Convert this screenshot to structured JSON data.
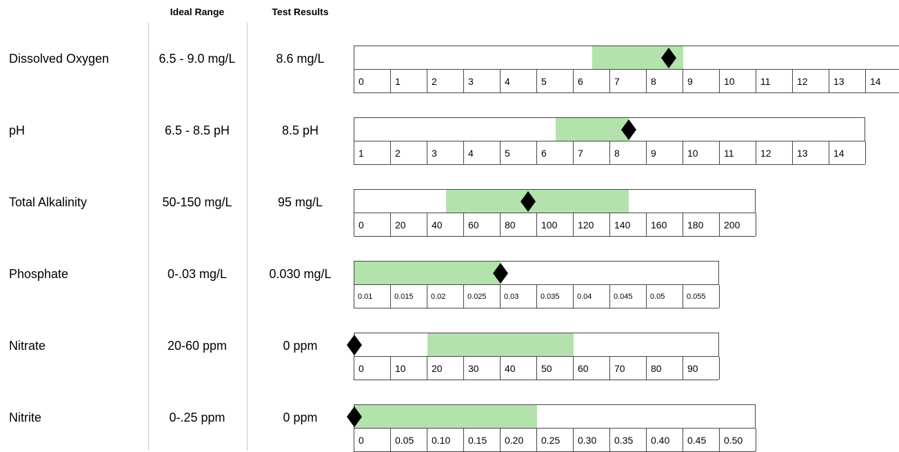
{
  "headers": {
    "ideal_range": "Ideal Range",
    "test_results": "Test Results"
  },
  "chart_data": {
    "type": "range-scale",
    "rows": [
      {
        "name": "Dissolved Oxygen",
        "ideal_label": "6.5 - 9.0 mg/L",
        "result_label": "8.6 mg/L",
        "ticks": [
          "0",
          "1",
          "2",
          "3",
          "4",
          "5",
          "6",
          "7",
          "8",
          "9",
          "10",
          "11",
          "12",
          "13",
          "14"
        ],
        "tick_values": [
          0,
          1,
          2,
          3,
          4,
          5,
          6,
          7,
          8,
          9,
          10,
          11,
          12,
          13,
          14
        ],
        "ideal_range": [
          6.5,
          9.0
        ],
        "result": 8.6,
        "small_ticks": false
      },
      {
        "name": "pH",
        "ideal_label": "6.5 - 8.5 pH",
        "result_label": "8.5 pH",
        "ticks": [
          "1",
          "2",
          "3",
          "4",
          "5",
          "6",
          "7",
          "8",
          "9",
          "10",
          "11",
          "12",
          "13",
          "14"
        ],
        "tick_values": [
          1,
          2,
          3,
          4,
          5,
          6,
          7,
          8,
          9,
          10,
          11,
          12,
          13,
          14
        ],
        "ideal_range": [
          6.5,
          8.5
        ],
        "result": 8.5,
        "small_ticks": false
      },
      {
        "name": "Total Alkalinity",
        "ideal_label": "50-150 mg/L",
        "result_label": "95 mg/L",
        "ticks": [
          "0",
          "20",
          "40",
          "60",
          "80",
          "100",
          "120",
          "140",
          "160",
          "180",
          "200"
        ],
        "tick_values": [
          0,
          20,
          40,
          60,
          80,
          100,
          120,
          140,
          160,
          180,
          200
        ],
        "ideal_range": [
          50,
          150
        ],
        "result": 95,
        "small_ticks": false
      },
      {
        "name": "Phosphate",
        "ideal_label": "0-.03 mg/L",
        "result_label": "0.030 mg/L",
        "ticks": [
          "0.01",
          "0.015",
          "0.02",
          "0.025",
          "0.03",
          "0.035",
          "0.04",
          "0.045",
          "0.05",
          "0.055"
        ],
        "tick_values": [
          0.01,
          0.015,
          0.02,
          0.025,
          0.03,
          0.035,
          0.04,
          0.045,
          0.05,
          0.055
        ],
        "ideal_range": [
          0.01,
          0.03
        ],
        "result": 0.03,
        "small_ticks": true
      },
      {
        "name": "Nitrate",
        "ideal_label": "20-60 ppm",
        "result_label": "0 ppm",
        "ticks": [
          "0",
          "10",
          "20",
          "30",
          "40",
          "50",
          "60",
          "70",
          "80",
          "90"
        ],
        "tick_values": [
          0,
          10,
          20,
          30,
          40,
          50,
          60,
          70,
          80,
          90
        ],
        "ideal_range": [
          20,
          60
        ],
        "result": 0,
        "small_ticks": false
      },
      {
        "name": "Nitrite",
        "ideal_label": "0-.25 ppm",
        "result_label": "0 ppm",
        "ticks": [
          "0",
          "0.05",
          "0.10",
          "0.15",
          "0.20",
          "0.25",
          "0.30",
          "0.35",
          "0.40",
          "0.45",
          "0.50"
        ],
        "tick_values": [
          0,
          0.05,
          0.1,
          0.15,
          0.2,
          0.25,
          0.3,
          0.35,
          0.4,
          0.45,
          0.5
        ],
        "ideal_range": [
          0,
          0.25
        ],
        "result": 0,
        "small_ticks": false
      }
    ]
  },
  "colors": {
    "ideal_fill": "#b4e2ad",
    "marker": "#000000",
    "border": "#444444"
  }
}
